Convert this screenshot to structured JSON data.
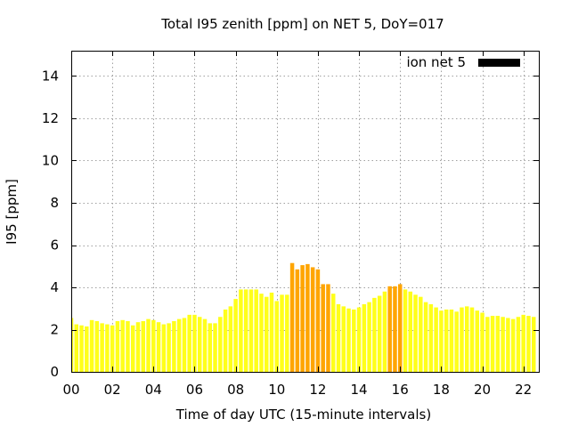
{
  "chart_data": {
    "type": "bar",
    "title": "Total I95 zenith [ppm] on NET 5, DoY=017",
    "xlabel": "Time of day UTC (15-minute intervals)",
    "ylabel": "I95 [ppm]",
    "xlim": [
      0,
      22.75
    ],
    "ylim": [
      0,
      15.2
    ],
    "x_ticks": [
      "00",
      "02",
      "04",
      "06",
      "08",
      "10",
      "12",
      "14",
      "16",
      "18",
      "20",
      "22"
    ],
    "y_ticks": [
      "0",
      "2",
      "4",
      "6",
      "8",
      "10",
      "12",
      "14"
    ],
    "grid": true,
    "legend": {
      "placement": "top-right",
      "entries": [
        {
          "label": "ion net 5",
          "color": "#000000"
        }
      ]
    },
    "interval_hours": 0.25,
    "threshold": 4.05,
    "colors": {
      "normal": "#ffff1a",
      "high": "#ffa500"
    },
    "series": [
      {
        "name": "ion net 5",
        "values": [
          2.55,
          2.25,
          2.2,
          2.15,
          2.45,
          2.4,
          2.3,
          2.25,
          2.2,
          2.4,
          2.45,
          2.4,
          2.2,
          2.35,
          2.4,
          2.5,
          2.45,
          2.35,
          2.25,
          2.3,
          2.4,
          2.5,
          2.55,
          2.7,
          2.7,
          2.6,
          2.5,
          2.3,
          2.3,
          2.6,
          2.95,
          3.1,
          3.45,
          3.9,
          3.9,
          3.9,
          3.9,
          3.7,
          3.55,
          3.75,
          3.35,
          3.65,
          3.65,
          5.15,
          4.85,
          5.05,
          5.1,
          4.95,
          4.85,
          4.15,
          4.15,
          3.7,
          3.2,
          3.1,
          3.0,
          2.95,
          3.05,
          3.2,
          3.3,
          3.5,
          3.6,
          3.8,
          4.05,
          4.05,
          4.15,
          3.9,
          3.8,
          3.65,
          3.55,
          3.3,
          3.2,
          3.05,
          2.9,
          2.95,
          2.95,
          2.85,
          3.05,
          3.1,
          3.05,
          2.9,
          2.8,
          2.6,
          2.65,
          2.65,
          2.6,
          2.55,
          2.5,
          2.6,
          2.7,
          2.65,
          2.6
        ]
      }
    ]
  }
}
